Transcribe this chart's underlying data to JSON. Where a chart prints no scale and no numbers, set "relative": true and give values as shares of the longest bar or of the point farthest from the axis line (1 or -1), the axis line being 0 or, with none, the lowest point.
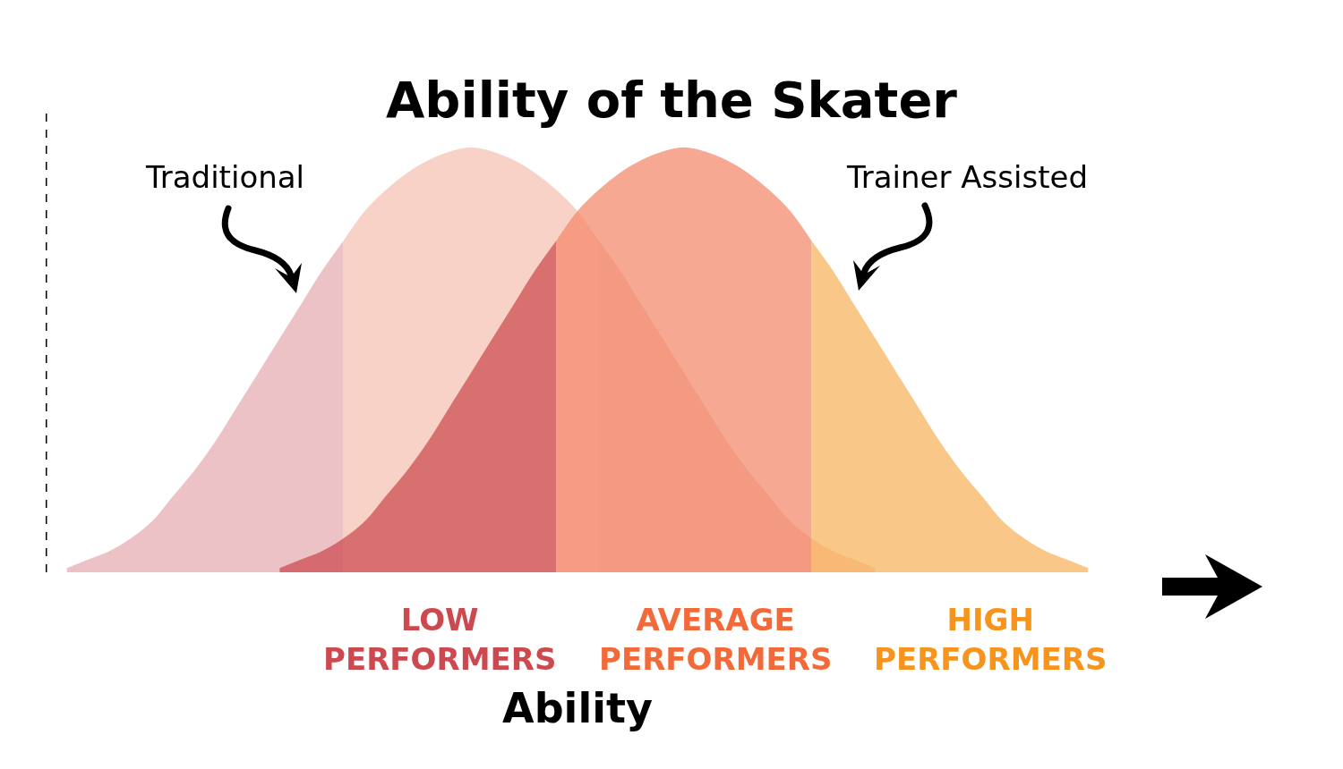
{
  "chart_data": {
    "type": "area",
    "relative": true,
    "title": "Ability of the Skater",
    "xlabel": "Ability",
    "categories": [
      null,
      null,
      null,
      null,
      null,
      null,
      null,
      null,
      null,
      null,
      null,
      null,
      null,
      null,
      null,
      null,
      null,
      null,
      null,
      null,
      null,
      null,
      null,
      null,
      null,
      null,
      null,
      null,
      null,
      null,
      null,
      null,
      null,
      null,
      null,
      null,
      null,
      null,
      null,
      null,
      null,
      null,
      null,
      null,
      null,
      null,
      null,
      null,
      null
    ],
    "series": [
      {
        "color": "#e5aab0",
        "values": [
          0.01,
          0.03,
          0.05,
          0.08,
          0.12,
          0.18,
          0.24,
          0.31,
          0.39,
          0.47,
          0.55,
          0.63,
          0.71,
          0.78,
          null,
          null,
          null,
          null,
          null,
          null,
          null,
          null,
          null,
          null,
          null,
          null,
          null,
          null,
          null,
          null,
          null,
          null,
          null,
          null,
          null,
          null,
          null,
          null,
          null,
          null,
          null,
          null,
          null,
          null,
          null,
          null,
          null,
          null,
          null
        ]
      },
      {
        "color": "#f7c1b1",
        "values": [
          null,
          null,
          null,
          null,
          null,
          null,
          null,
          null,
          null,
          null,
          null,
          null,
          null,
          0.78,
          0.85,
          0.9,
          0.94,
          0.97,
          0.99,
          1.0,
          0.99,
          0.97,
          0.94,
          0.9,
          0.85,
          0.78,
          null,
          null,
          null,
          null,
          null,
          null,
          null,
          null,
          null,
          null,
          null,
          null,
          null,
          null,
          null,
          null,
          null,
          null,
          null,
          null,
          null,
          null,
          null
        ]
      },
      {
        "color": "#f5b7a2",
        "values": [
          null,
          null,
          null,
          null,
          null,
          null,
          null,
          null,
          null,
          null,
          null,
          null,
          null,
          null,
          null,
          null,
          null,
          null,
          null,
          null,
          null,
          null,
          null,
          null,
          null,
          0.78,
          0.71,
          0.63,
          0.55,
          0.47,
          0.39,
          0.31,
          0.24,
          0.18,
          0.12,
          0.08,
          0.05,
          0.03,
          0.01,
          null,
          null,
          null,
          null,
          null,
          null,
          null,
          null,
          null,
          null
        ]
      },
      {
        "color": "#cc4a4f",
        "values": [
          null,
          null,
          null,
          null,
          null,
          null,
          null,
          null,
          null,
          null,
          0.01,
          0.03,
          0.05,
          0.08,
          0.12,
          0.18,
          0.24,
          0.31,
          0.39,
          0.47,
          0.55,
          0.63,
          0.71,
          0.78,
          null,
          null,
          null,
          null,
          null,
          null,
          null,
          null,
          null,
          null,
          null,
          null,
          null,
          null,
          null,
          null,
          null,
          null,
          null,
          null,
          null,
          null,
          null,
          null,
          null
        ]
      },
      {
        "color": "#f2876a",
        "values": [
          null,
          null,
          null,
          null,
          null,
          null,
          null,
          null,
          null,
          null,
          null,
          null,
          null,
          null,
          null,
          null,
          null,
          null,
          null,
          null,
          null,
          null,
          null,
          0.78,
          0.85,
          0.9,
          0.94,
          0.97,
          0.99,
          1.0,
          0.99,
          0.97,
          0.94,
          0.9,
          0.85,
          0.78,
          null,
          null,
          null,
          null,
          null,
          null,
          null,
          null,
          null,
          null,
          null,
          null,
          null
        ]
      },
      {
        "color": "#f7b15a",
        "values": [
          null,
          null,
          null,
          null,
          null,
          null,
          null,
          null,
          null,
          null,
          null,
          null,
          null,
          null,
          null,
          null,
          null,
          null,
          null,
          null,
          null,
          null,
          null,
          null,
          null,
          null,
          null,
          null,
          null,
          null,
          null,
          null,
          null,
          null,
          null,
          0.78,
          0.71,
          0.63,
          0.55,
          0.47,
          0.39,
          0.31,
          0.24,
          0.18,
          0.12,
          0.08,
          0.05,
          0.03,
          0.01
        ]
      }
    ],
    "annotations": [
      "Traditional",
      "Trainer Assisted",
      "LOW\nPERFORMERS",
      "AVERAGE\nPERFORMERS",
      "HIGH\nPERFORMERS"
    ]
  }
}
